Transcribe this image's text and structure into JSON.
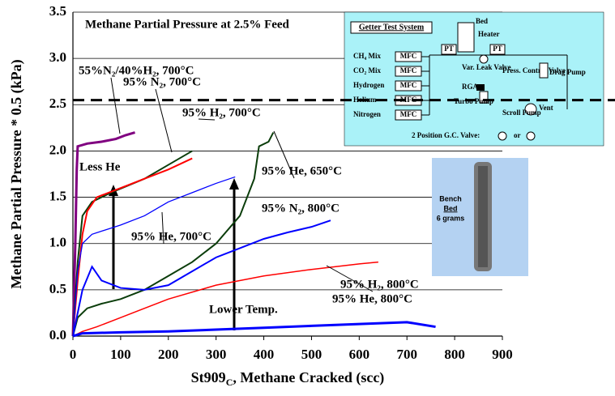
{
  "chart_data": {
    "type": "line",
    "x_label_main": "St909",
    "x_label_sub": "C",
    "x_label_rest": ", Methane Cracked (scc)",
    "y_label": "Methane Partial Pressure * 0.5 (kPa)",
    "xlim": [
      0,
      900
    ],
    "ylim": [
      0,
      3.5
    ],
    "xticks": [
      0,
      100,
      200,
      300,
      400,
      500,
      600,
      700,
      800,
      900
    ],
    "yticks": [
      {
        "value": 0,
        "label": "0.0"
      },
      0.5,
      {
        "value": 1,
        "label": "1.0"
      },
      1.5,
      {
        "value": 2,
        "label": "2.0"
      },
      2.5,
      {
        "value": 3,
        "label": "3.0"
      },
      3.5
    ],
    "grid": true,
    "reference_line": {
      "value": 2.55,
      "label": "Methane Partial Pressure at 2.5% Feed"
    },
    "annotations": [
      "Less He",
      "Lower Temp."
    ],
    "series": [
      {
        "name": "55%N₂/40%H₂, 700°C",
        "color": "#800080",
        "x": [
          0,
          5,
          8,
          10,
          30,
          60,
          90,
          110,
          130
        ],
        "values": [
          0,
          1.0,
          1.8,
          2.05,
          2.08,
          2.1,
          2.13,
          2.17,
          2.2
        ]
      },
      {
        "name": "95% N₂, 700°C",
        "color": "#0b3d0b",
        "x": [
          0,
          10,
          20,
          40,
          80,
          150,
          200,
          250
        ],
        "values": [
          0,
          0.8,
          1.3,
          1.45,
          1.55,
          1.7,
          1.85,
          2.0
        ]
      },
      {
        "name": "95% H₂, 700°C",
        "color": "#ff0000",
        "x": [
          0,
          10,
          20,
          30,
          50,
          100,
          150,
          200,
          250
        ],
        "values": [
          0,
          0.6,
          1.1,
          1.35,
          1.5,
          1.6,
          1.7,
          1.8,
          1.92
        ]
      },
      {
        "name": "95% He, 650°C",
        "color": "#0000ff",
        "x": [
          0,
          10,
          20,
          40,
          100,
          150,
          200,
          250,
          300,
          340
        ],
        "values": [
          0,
          0.7,
          1.0,
          1.1,
          1.2,
          1.3,
          1.45,
          1.55,
          1.65,
          1.72
        ]
      },
      {
        "name": "95% N₂, 800°C",
        "color": "#0b3d0b",
        "x": [
          0,
          10,
          30,
          60,
          100,
          150,
          200,
          250,
          300,
          350,
          380,
          390,
          410,
          420
        ],
        "values": [
          0,
          0.2,
          0.3,
          0.35,
          0.4,
          0.5,
          0.65,
          0.8,
          1.0,
          1.3,
          1.7,
          2.05,
          2.1,
          2.2
        ]
      },
      {
        "name": "95% He, 700°C",
        "color": "#0000ff",
        "x": [
          0,
          20,
          40,
          60,
          100,
          150,
          200,
          250,
          300,
          350,
          400,
          450,
          500,
          540
        ],
        "values": [
          0,
          0.5,
          0.75,
          0.6,
          0.52,
          0.5,
          0.55,
          0.7,
          0.85,
          0.95,
          1.05,
          1.12,
          1.18,
          1.25
        ]
      },
      {
        "name": "95% H₂, 800°C",
        "color": "#ff0000",
        "x": [
          0,
          20,
          50,
          100,
          200,
          300,
          400,
          500,
          600,
          640
        ],
        "values": [
          0,
          0.05,
          0.1,
          0.2,
          0.4,
          0.55,
          0.65,
          0.72,
          0.78,
          0.8
        ]
      },
      {
        "name": "95% He, 800°C",
        "color": "#0000ff",
        "x": [
          0,
          20,
          100,
          200,
          300,
          400,
          500,
          600,
          700,
          760
        ],
        "values": [
          0,
          0.03,
          0.04,
          0.05,
          0.07,
          0.09,
          0.11,
          0.13,
          0.15,
          0.1
        ]
      }
    ]
  },
  "schematic": {
    "title": "Getter Test System",
    "bed": "Bed",
    "heater": "Heater",
    "pt": "PT",
    "gases": [
      "CH₄ Mix",
      "CO₂ Mix",
      "Hydrogen",
      "Helium",
      "Nitrogen"
    ],
    "mfc": "MFC",
    "var_leak": "Var. Leak Valve",
    "rga": "RGA",
    "turbo": "Turbo Pump",
    "press_control": "Press. Control Valve",
    "drag": "Drag Pump",
    "scroll": "Scroll Pump",
    "vent": "Vent",
    "gc_valve": "2 Position G.C. Valve:",
    "or": "or"
  },
  "photo": {
    "line1": "Bench",
    "line2": "Bed",
    "line3": "6 grams"
  }
}
